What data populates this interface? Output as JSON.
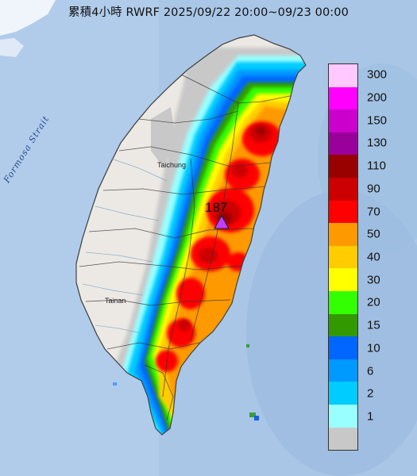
{
  "title": "累積4小時 RWRF 2025/09/22 20:00~09/23 00:00",
  "max_value": "187",
  "sea_label": "Formosa Strait",
  "cities": {
    "taichung": "Taichung",
    "tainan": "Tainan"
  },
  "colors": {
    "sea": "#a9c6e6",
    "land": "#ece9e4",
    "marker": "#c040ff"
  },
  "legend": [
    {
      "label": "300",
      "color": "#ffc8ff"
    },
    {
      "label": "200",
      "color": "#ff00ff"
    },
    {
      "label": "150",
      "color": "#cc00cc"
    },
    {
      "label": "130",
      "color": "#990099"
    },
    {
      "label": "110",
      "color": "#990000"
    },
    {
      "label": "90",
      "color": "#cc0000"
    },
    {
      "label": "70",
      "color": "#ff0000"
    },
    {
      "label": "50",
      "color": "#ff9900"
    },
    {
      "label": "40",
      "color": "#ffcc00"
    },
    {
      "label": "30",
      "color": "#ffff00"
    },
    {
      "label": "20",
      "color": "#33ff00"
    },
    {
      "label": "15",
      "color": "#339900"
    },
    {
      "label": "10",
      "color": "#0066ff"
    },
    {
      "label": "6",
      "color": "#0099ff"
    },
    {
      "label": "2",
      "color": "#00ccff"
    },
    {
      "label": "1",
      "color": "#99ffff"
    },
    {
      "label": "",
      "color": "#c8c8c8"
    }
  ]
}
